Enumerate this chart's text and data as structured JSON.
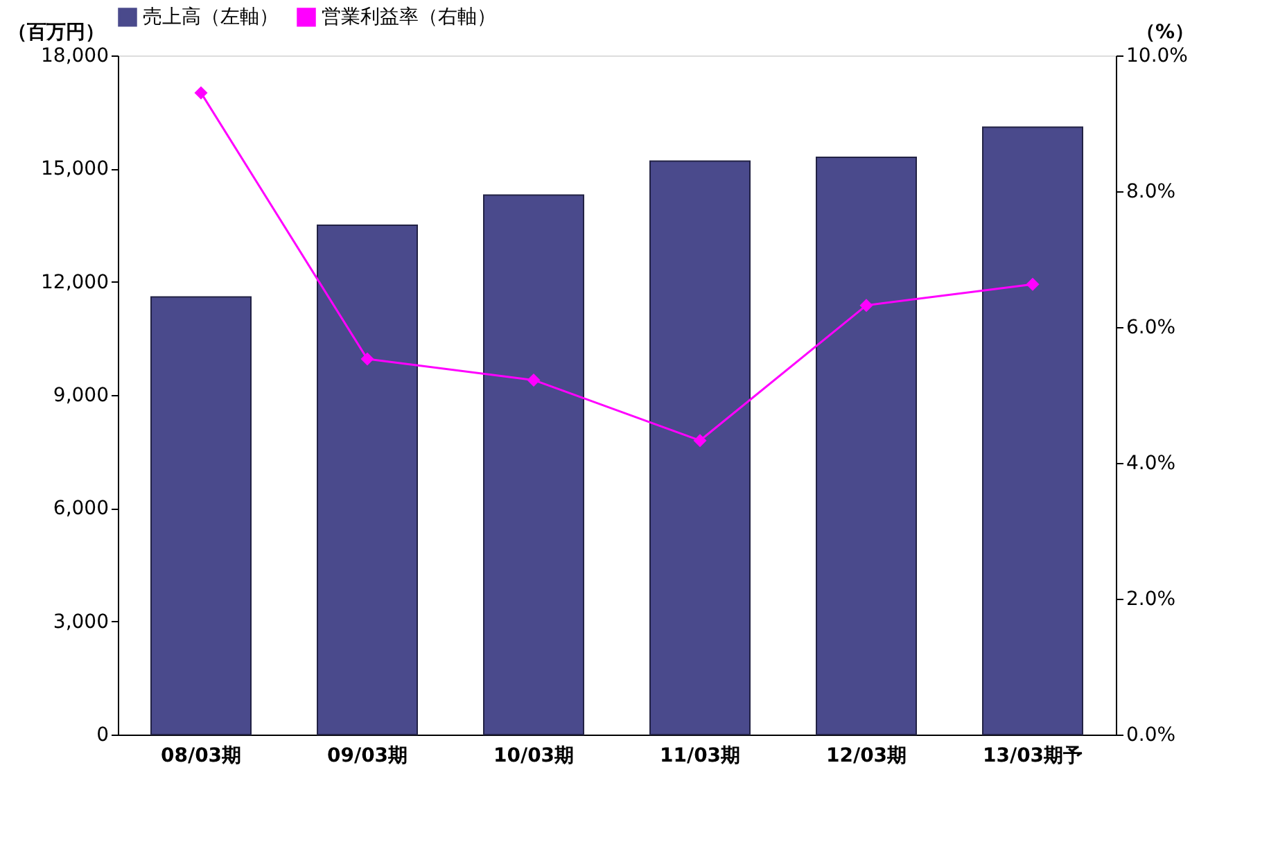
{
  "chart_data": {
    "type": "bar",
    "categories": [
      "08/03期",
      "09/03期",
      "10/03期",
      "11/03期",
      "12/03期",
      "13/03期予"
    ],
    "series": [
      {
        "name": "売上高（左軸）",
        "type": "bar",
        "color": "#4a4a8c",
        "values": [
          11600,
          13500,
          14300,
          15200,
          15300,
          16100
        ]
      },
      {
        "name": "営業利益率（右軸）",
        "type": "line",
        "axis": "y2",
        "color": "#ff00ff",
        "marker": "diamond",
        "line_style": "solid",
        "values": [
          9.45,
          5.53,
          5.22,
          4.33,
          6.32,
          6.63
        ]
      }
    ],
    "ylabel": "（百万円）",
    "y2label": "（%）",
    "ylim": [
      0,
      18000
    ],
    "yticks": [
      0,
      {
        "value": 3000,
        "label": "3,000"
      },
      {
        "value": 6000,
        "label": "6,000"
      },
      {
        "value": 9000,
        "label": "9,000"
      },
      {
        "value": 12000,
        "label": "12,000"
      },
      {
        "value": 15000,
        "label": "15,000"
      },
      {
        "value": 18000,
        "label": "18,000"
      }
    ],
    "y2lim": [
      0,
      10
    ],
    "y2ticks": [
      {
        "value": 0,
        "label": "0.0%"
      },
      {
        "value": 2,
        "label": "2.0%"
      },
      {
        "value": 4,
        "label": "4.0%"
      },
      {
        "value": 6,
        "label": "6.0%"
      },
      {
        "value": 8,
        "label": "8.0%"
      },
      {
        "value": 10,
        "label": "10.0%"
      }
    ],
    "grid": false,
    "legend": "top"
  }
}
